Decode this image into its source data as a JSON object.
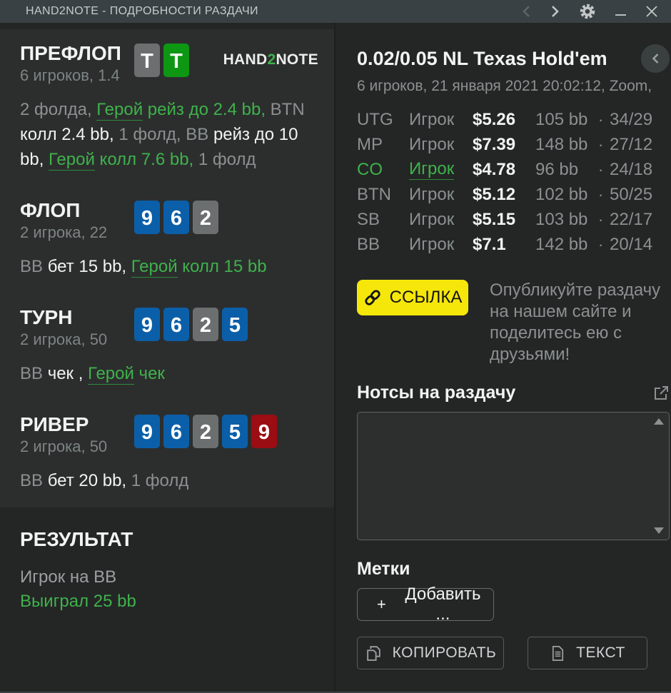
{
  "window": {
    "title": "HAND2NOTE - ПОДРОБНОСТИ РАЗДАЧИ"
  },
  "branding": {
    "logo_part1": "HAND",
    "logo_accent": "2",
    "logo_part2": "NOTE"
  },
  "colors": {
    "titlebar": "#3a4144",
    "background": "#242626",
    "panel": "#2c2e2e",
    "accent_green": "#3fb24b",
    "link_yellow": "#f6e70a",
    "card_blue": "#0b5fa9",
    "card_gray": "#6b6f6f",
    "card_green": "#0d9713",
    "card_red": "#9a0d12"
  },
  "streets": [
    {
      "title": "ПРЕФЛОП",
      "subtitle": "6 игроков, 1.4",
      "show_logo": true,
      "cards": [
        {
          "rank": "T",
          "color": "gray"
        },
        {
          "rank": "T",
          "color": "green"
        }
      ],
      "actions": [
        {
          "text": "2 фолда, ",
          "style": "muted"
        },
        {
          "text": "Герой",
          "style": "hero"
        },
        {
          "text": " рейз до 2.4 bb, ",
          "style": "green"
        },
        {
          "text": "BTN ",
          "style": "muted"
        },
        {
          "text": "колл 2.4 bb, ",
          "style": "white"
        },
        {
          "text": "1 фолд, BB ",
          "style": "muted"
        },
        {
          "text": "рейз до 10 bb, ",
          "style": "white"
        },
        {
          "text": "Герой",
          "style": "hero"
        },
        {
          "text": " колл 7.6 bb, ",
          "style": "green"
        },
        {
          "text": "1 фолд",
          "style": "muted"
        }
      ]
    },
    {
      "title": "ФЛОП",
      "subtitle": "2 игрока, 22",
      "show_logo": false,
      "cards": [
        {
          "rank": "9",
          "color": "blue"
        },
        {
          "rank": "6",
          "color": "blue"
        },
        {
          "rank": "2",
          "color": "gray"
        }
      ],
      "actions": [
        {
          "text": "BB ",
          "style": "muted"
        },
        {
          "text": "бет 15 bb, ",
          "style": "white"
        },
        {
          "text": "Герой",
          "style": "hero"
        },
        {
          "text": " колл 15 bb",
          "style": "green"
        }
      ]
    },
    {
      "title": "ТУРН",
      "subtitle": "2 игрока, 50",
      "show_logo": false,
      "cards": [
        {
          "rank": "9",
          "color": "blue"
        },
        {
          "rank": "6",
          "color": "blue"
        },
        {
          "rank": "2",
          "color": "gray"
        },
        {
          "rank": "5",
          "color": "blue"
        }
      ],
      "actions": [
        {
          "text": "BB ",
          "style": "muted"
        },
        {
          "text": "чек , ",
          "style": "white"
        },
        {
          "text": "Герой",
          "style": "hero"
        },
        {
          "text": " чек",
          "style": "green"
        }
      ]
    },
    {
      "title": "РИВЕР",
      "subtitle": "2 игрока, 50",
      "show_logo": false,
      "cards": [
        {
          "rank": "9",
          "color": "blue"
        },
        {
          "rank": "6",
          "color": "blue"
        },
        {
          "rank": "2",
          "color": "gray"
        },
        {
          "rank": "5",
          "color": "blue"
        },
        {
          "rank": "9",
          "color": "red"
        }
      ],
      "actions": [
        {
          "text": "BB ",
          "style": "muted"
        },
        {
          "text": "бет 20 bb, ",
          "style": "white"
        },
        {
          "text": "1 фолд",
          "style": "muted"
        }
      ]
    }
  ],
  "result": {
    "title": "РЕЗУЛЬТАТ",
    "player_line": "Игрок на BB",
    "outcome_line": "Выиграл 25 bb"
  },
  "hand_info": {
    "title": "0.02/0.05 NL Texas Hold'em",
    "subtitle": "6 игроков, 21 января 2021 20:02:12, Zoom,"
  },
  "players_separator": "·",
  "players": [
    {
      "pos": "UTG",
      "name": "Игрок",
      "stack": "$5.26",
      "bb": "105 bb",
      "stats": "34/29",
      "hero": false
    },
    {
      "pos": "MP",
      "name": "Игрок",
      "stack": "$7.39",
      "bb": "148 bb",
      "stats": "27/12",
      "hero": false
    },
    {
      "pos": "CO",
      "name": "Игрок",
      "stack": "$4.78",
      "bb": "96 bb",
      "stats": "24/18",
      "hero": true
    },
    {
      "pos": "BTN",
      "name": "Игрок",
      "stack": "$5.12",
      "bb": "102 bb",
      "stats": "50/25",
      "hero": false
    },
    {
      "pos": "SB",
      "name": "Игрок",
      "stack": "$5.15",
      "bb": "103 bb",
      "stats": "22/17",
      "hero": false
    },
    {
      "pos": "BB",
      "name": "Игрок",
      "stack": "$7.1",
      "bb": "142 bb",
      "stats": "20/14",
      "hero": false
    }
  ],
  "share": {
    "link_button_label": "ССЫЛКА",
    "promo_text": "Опубликуйте раздачу на нашем сайте и поделитесь ею с друзьями!"
  },
  "notes": {
    "title": "Нотсы на раздачу",
    "value": ""
  },
  "tags": {
    "title": "Метки",
    "plus_sign": "+",
    "add_button_label": "Добавить ..."
  },
  "footer": {
    "copy_button_label": "КОПИРОВАТЬ",
    "text_button_label": "ТЕКСТ"
  }
}
